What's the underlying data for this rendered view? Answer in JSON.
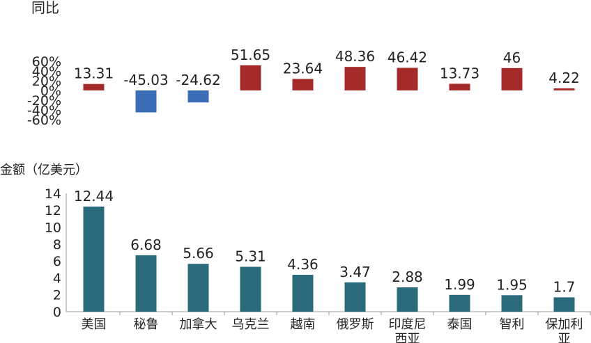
{
  "chart_data": [
    {
      "type": "bar",
      "ylabel": "同比",
      "y_tick_labels": [
        "60%",
        "40%",
        "20%",
        "0%",
        "-20%",
        "-40%",
        "-60%"
      ],
      "ylim": [
        -60,
        60
      ],
      "categories": [
        "美国",
        "秘鲁",
        "加拿大",
        "乌克兰",
        "越南",
        "俄罗斯",
        "印度尼西亚",
        "泰国",
        "智利",
        "保加利亚"
      ],
      "values": [
        13.31,
        -45.03,
        -24.62,
        51.65,
        23.64,
        48.36,
        46.42,
        13.73,
        46,
        4.22
      ],
      "value_labels": [
        "13.31",
        "-45.03",
        "-24.62",
        "51.65",
        "23.64",
        "48.36",
        "46.42",
        "13.73",
        "46",
        "4.22"
      ],
      "colors": {
        "positive": "#a52a2a",
        "negative": "#3a6db5"
      },
      "grid": false
    },
    {
      "type": "bar",
      "ylabel": "金额（亿美元）",
      "y_tick_labels": [
        "14",
        "12",
        "10",
        "8",
        "6",
        "4",
        "2",
        "0"
      ],
      "ylim": [
        0,
        14
      ],
      "categories": [
        "美国",
        "秘鲁",
        "加拿大",
        "乌克兰",
        "越南",
        "俄罗斯",
        "印度尼西亚",
        "泰国",
        "智利",
        "保加利亚"
      ],
      "category_label_lines": [
        [
          "美国"
        ],
        [
          "秘鲁"
        ],
        [
          "加拿大"
        ],
        [
          "乌克兰"
        ],
        [
          "越南"
        ],
        [
          "俄罗斯"
        ],
        [
          "印度尼",
          "西亚"
        ],
        [
          "泰国"
        ],
        [
          "智利"
        ],
        [
          "保加利",
          "亚"
        ]
      ],
      "values": [
        12.44,
        6.68,
        5.66,
        5.31,
        4.36,
        3.47,
        2.88,
        1.99,
        1.95,
        1.7
      ],
      "value_labels": [
        "12.44",
        "6.68",
        "5.66",
        "5.31",
        "4.36",
        "3.47",
        "2.88",
        "1.99",
        "1.95",
        "1.7"
      ],
      "colors": {
        "bar": "#2a6a7a",
        "axis": "#999999"
      },
      "grid": false
    }
  ]
}
